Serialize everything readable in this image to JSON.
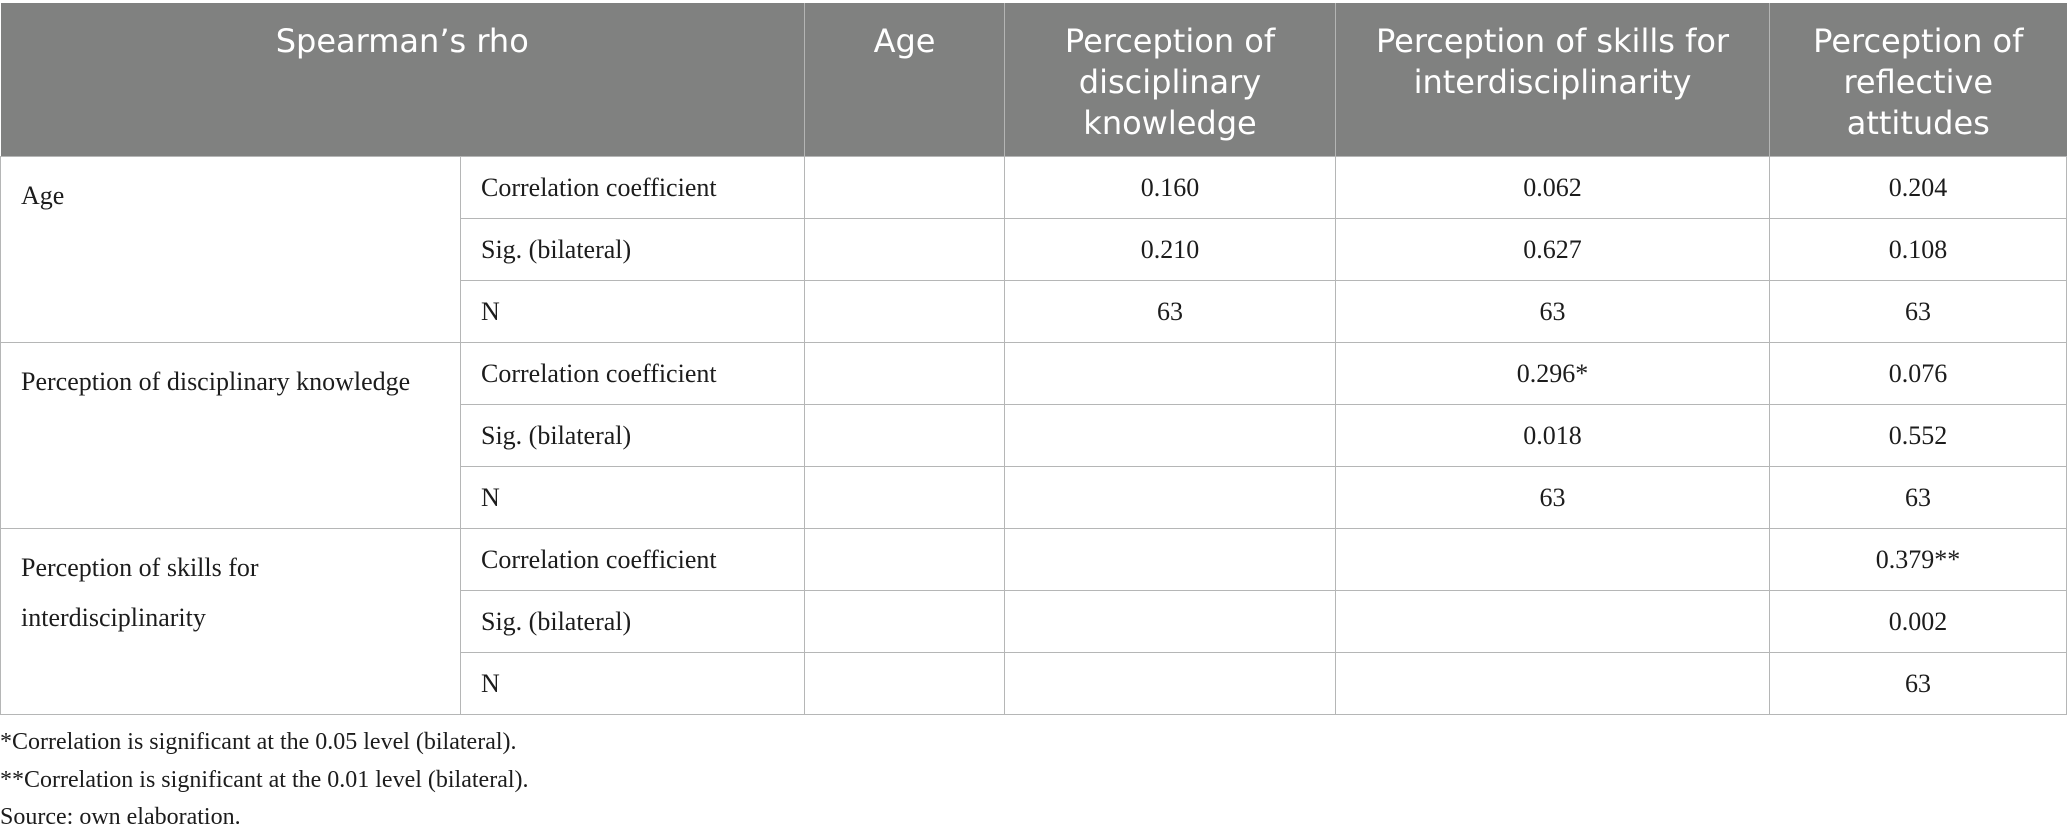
{
  "table": {
    "header": {
      "spearman": "Spearman’s rho",
      "age": "Age",
      "disciplinary_knowledge": "Perception of disciplinary knowledge",
      "skills_interdisciplinarity": "Perception of skills for interdisciplinarity",
      "reflective_attitudes": "Perception of reflective attitudes"
    },
    "groups": [
      {
        "label": "Age",
        "rows": [
          {
            "stat": "Correlation coefficient",
            "age": "",
            "knowledge": "0.160",
            "skills": "0.062",
            "attitudes": "0.204"
          },
          {
            "stat": "Sig. (bilateral)",
            "age": "",
            "knowledge": "0.210",
            "skills": "0.627",
            "attitudes": "0.108"
          },
          {
            "stat": "N",
            "age": "",
            "knowledge": "63",
            "skills": "63",
            "attitudes": "63"
          }
        ]
      },
      {
        "label": "Perception of disciplinary knowledge",
        "rows": [
          {
            "stat": "Correlation coefficient",
            "age": "",
            "knowledge": "",
            "skills": "0.296*",
            "attitudes": "0.076"
          },
          {
            "stat": "Sig. (bilateral)",
            "age": "",
            "knowledge": "",
            "skills": "0.018",
            "attitudes": "0.552"
          },
          {
            "stat": "N",
            "age": "",
            "knowledge": "",
            "skills": "63",
            "attitudes": "63"
          }
        ]
      },
      {
        "label": "Perception of skills for interdisciplinarity",
        "rows": [
          {
            "stat": "Correlation coefficient",
            "age": "",
            "knowledge": "",
            "skills": "",
            "attitudes": "0.379**"
          },
          {
            "stat": "Sig. (bilateral)",
            "age": "",
            "knowledge": "",
            "skills": "",
            "attitudes": "0.002"
          },
          {
            "stat": "N",
            "age": "",
            "knowledge": "",
            "skills": "",
            "attitudes": "63"
          }
        ]
      }
    ]
  },
  "notes": {
    "sig_005": "*Correlation is significant at the 0.05 level (bilateral).",
    "sig_001": "**Correlation is significant at the 0.01 level (bilateral).",
    "source": "Source: own elaboration."
  }
}
